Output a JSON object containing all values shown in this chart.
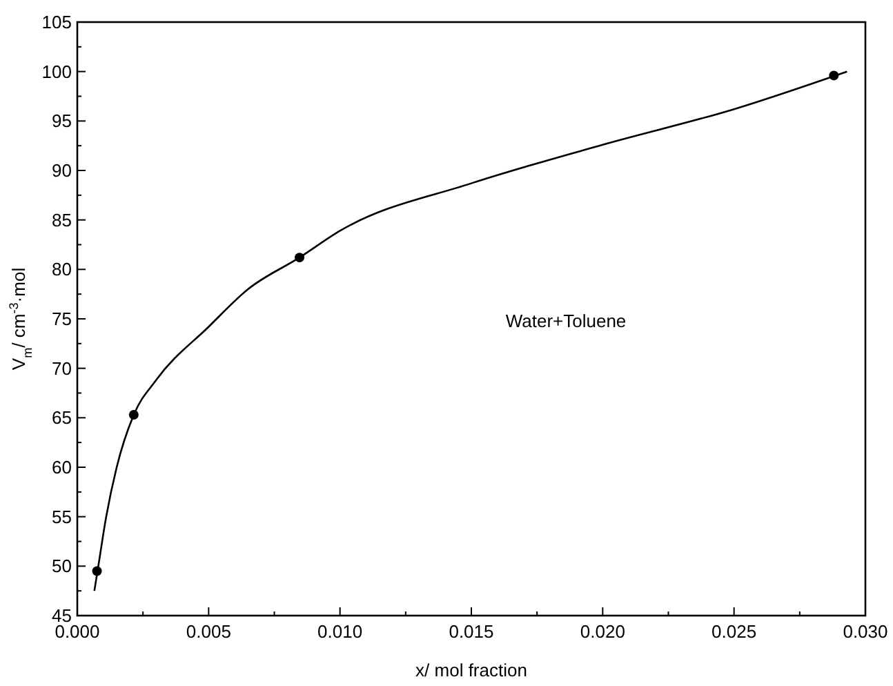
{
  "chart_data": {
    "type": "scatter",
    "xlabel": "x/ mol fraction",
    "ylabel": "V$_{m}$/ cm$^{-3}$·mol",
    "annotations": [
      "Water+Toluene"
    ],
    "xlim": [
      0,
      0.03
    ],
    "xticks": [
      {
        "value": 0,
        "label": "0.000"
      },
      {
        "value": 0.005,
        "label": "0.005"
      },
      {
        "value": 0.01,
        "label": "0.010"
      },
      {
        "value": 0.015,
        "label": "0.015"
      },
      {
        "value": 0.02,
        "label": "0.020"
      },
      {
        "value": 0.025,
        "label": "0.025"
      },
      {
        "value": 0.03,
        "label": "0.030"
      }
    ],
    "ylim": [
      45,
      105
    ],
    "yticks": [
      45,
      50,
      55,
      60,
      65,
      70,
      75,
      80,
      85,
      90,
      95,
      100,
      105
    ],
    "series": [
      {
        "type": "line",
        "color": "#000000",
        "marker": "none",
        "line_style": "solid",
        "x": [
          0.00065,
          0.0008,
          0.0011,
          0.0015,
          0.00215,
          0.003,
          0.005,
          0.0065,
          0.00846,
          0.01,
          0.015,
          0.02,
          0.025,
          0.0293
        ],
        "values": [
          47.5,
          50,
          55,
          60,
          65.3,
          68.8,
          74.2,
          78,
          81.2,
          83.9,
          88.7,
          92.6,
          96.2,
          100
        ]
      },
      {
        "color": "#000000",
        "marker": "circle",
        "x": [
          0.00075,
          0.00215,
          0.00846,
          0.0288
        ],
        "values": [
          49.5,
          65.3,
          81.2,
          99.6
        ]
      }
    ]
  }
}
